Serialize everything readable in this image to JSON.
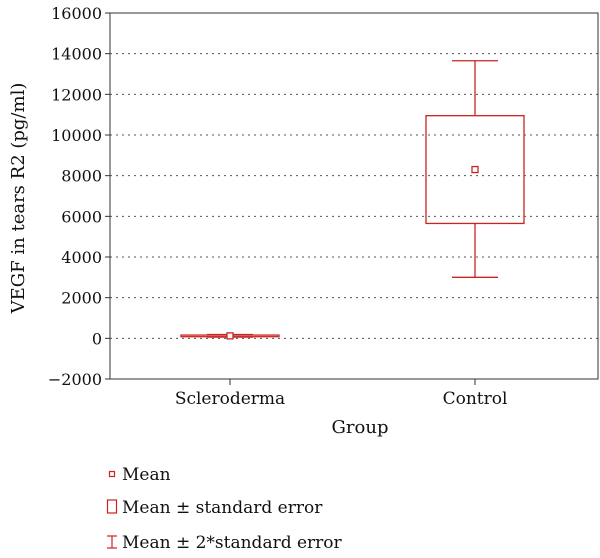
{
  "chart_data": {
    "type": "box",
    "ylabel": "VEGF in tears R2 (pg/ml)",
    "xlabel": "Group",
    "ylim": [
      -2000,
      16000
    ],
    "yticks": [
      -2000,
      0,
      2000,
      4000,
      6000,
      8000,
      10000,
      12000,
      14000,
      16000
    ],
    "ytick_labels": [
      "−2000",
      "0",
      "2000",
      "4000",
      "6000",
      "8000",
      "10000",
      "12000",
      "14000",
      "16000"
    ],
    "grid": "horizontal dotted",
    "categories": [
      "Scleroderma",
      "Control"
    ],
    "series": [
      {
        "category": "Scleroderma",
        "mean": 120,
        "se_low": 80,
        "se_high": 160,
        "se2_low": 60,
        "se2_high": 190
      },
      {
        "category": "Control",
        "mean": 8300,
        "se_low": 5650,
        "se_high": 10950,
        "se2_low": 3000,
        "se2_high": 13650
      }
    ],
    "legend": {
      "placement": "bottom-left",
      "items": [
        {
          "symbol": "mean-marker",
          "label": "Mean"
        },
        {
          "symbol": "box",
          "label": "Mean ± standard error"
        },
        {
          "symbol": "whisker",
          "label": "Mean ± 2*standard error"
        }
      ]
    },
    "color": "#cc2222"
  }
}
